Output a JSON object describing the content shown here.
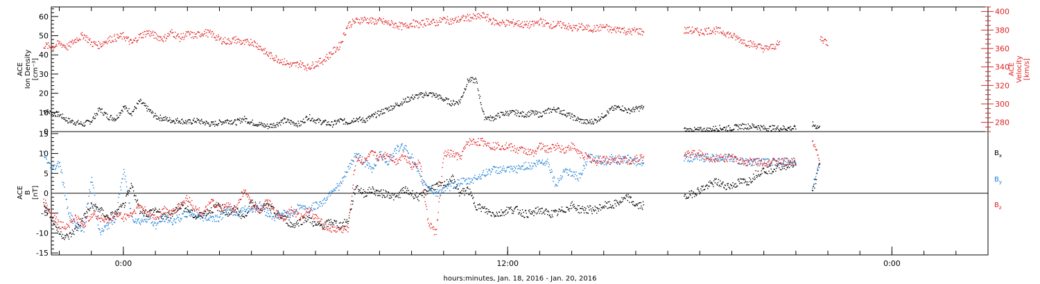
{
  "chart_data": [
    {
      "type": "scatter",
      "panel": "top",
      "ylabel": [
        "ACE",
        "Ion Density",
        "[cm⁻³]"
      ],
      "ylabel_right": [
        "ACE",
        "Velocity",
        "[km/s]"
      ],
      "ylim": [
        0,
        65
      ],
      "yticks": [
        0,
        10,
        20,
        30,
        40,
        50,
        60
      ],
      "ylim_right": [
        270,
        405
      ],
      "yticks_right": [
        280,
        300,
        320,
        340,
        360,
        380,
        400
      ],
      "colors": {
        "density": "#000000",
        "velocity": "#e02020"
      },
      "series": [
        {
          "name": "",
          "axis": "left",
          "color": "#000000",
          "x": [
            -2,
            -1,
            0,
            1,
            2,
            3,
            4,
            5,
            6,
            7,
            8,
            9,
            10,
            11,
            12,
            13,
            14,
            15,
            16,
            17,
            18,
            19,
            20,
            21,
            22,
            23,
            24,
            25,
            26,
            27,
            28,
            29,
            30,
            31,
            32,
            33,
            34,
            35,
            36,
            37,
            38,
            39,
            40,
            41,
            42,
            43,
            44,
            45,
            46,
            47,
            48,
            49,
            50,
            51,
            52,
            53,
            54,
            55,
            56,
            57,
            58,
            59,
            60,
            61,
            62,
            63,
            64,
            65,
            66,
            67,
            68,
            69,
            70,
            71,
            72,
            73,
            74,
            75,
            76,
            77,
            78,
            79,
            80,
            81,
            82,
            83,
            84,
            85,
            86,
            87,
            88,
            89,
            90,
            91,
            92,
            93,
            94,
            95,
            96,
            97,
            98,
            99,
            100
          ],
          "y": [
            11,
            10,
            9,
            6,
            5,
            4,
            6,
            12,
            8,
            7,
            13,
            10,
            16,
            12,
            8,
            7,
            6,
            6,
            5,
            6,
            5,
            4,
            5,
            6,
            5,
            7,
            5,
            4,
            3,
            4,
            6,
            5,
            4,
            8,
            6,
            5,
            4,
            6,
            5,
            7,
            6,
            8,
            10,
            12,
            14,
            16,
            18,
            19,
            20,
            19,
            17,
            15,
            16,
            27,
            27,
            8,
            7,
            9,
            10,
            10,
            9,
            10,
            9,
            11,
            12,
            10,
            8,
            6,
            5,
            6,
            9,
            12,
            13,
            11,
            12,
            13,
            null,
            null,
            null,
            null,
            1,
            1,
            1,
            1,
            2,
            2,
            2,
            3,
            3,
            3,
            2,
            2,
            2,
            2,
            2,
            null,
            4,
            2,
            null,
            null,
            null,
            null,
            null
          ]
        },
        {
          "name": "",
          "axis": "right",
          "color": "#e02020",
          "x": [
            -2,
            -1,
            0,
            1,
            2,
            3,
            4,
            5,
            6,
            7,
            8,
            9,
            10,
            11,
            12,
            13,
            14,
            15,
            16,
            17,
            18,
            19,
            20,
            21,
            22,
            23,
            24,
            25,
            26,
            27,
            28,
            29,
            30,
            31,
            32,
            33,
            34,
            35,
            36,
            37,
            38,
            39,
            40,
            41,
            42,
            43,
            44,
            45,
            46,
            47,
            48,
            49,
            50,
            51,
            52,
            53,
            54,
            55,
            56,
            57,
            58,
            59,
            60,
            61,
            62,
            63,
            64,
            65,
            66,
            67,
            68,
            69,
            70,
            71,
            72,
            73,
            74,
            75,
            76,
            77,
            78,
            79,
            80,
            81,
            82,
            83,
            84,
            85,
            86,
            87,
            88,
            89,
            90,
            91,
            92,
            93,
            94,
            95,
            96,
            97,
            98,
            99,
            100
          ],
          "y": [
            364,
            362,
            366,
            362,
            370,
            375,
            366,
            364,
            370,
            372,
            374,
            366,
            374,
            378,
            374,
            371,
            378,
            372,
            376,
            374,
            378,
            376,
            370,
            368,
            370,
            366,
            368,
            362,
            354,
            350,
            346,
            342,
            344,
            340,
            344,
            348,
            356,
            364,
            386,
            390,
            392,
            390,
            390,
            388,
            386,
            384,
            388,
            386,
            390,
            388,
            392,
            390,
            392,
            394,
            394,
            396,
            390,
            388,
            388,
            388,
            386,
            386,
            390,
            386,
            386,
            386,
            382,
            384,
            382,
            382,
            384,
            380,
            382,
            378,
            380,
            378,
            null,
            null,
            null,
            null,
            380,
            380,
            378,
            380,
            380,
            378,
            374,
            370,
            366,
            364,
            360,
            362,
            366,
            null,
            null,
            null,
            null,
            372,
            366,
            null,
            null,
            null,
            null
          ]
        }
      ]
    },
    {
      "type": "scatter",
      "panel": "bottom",
      "ylabel": [
        "ACE",
        "B",
        "[nT]"
      ],
      "ylim": [
        -15.5,
        15.5
      ],
      "yticks": [
        -15,
        -10,
        -5,
        0,
        5,
        10,
        15
      ],
      "xticks": [
        {
          "x": 8,
          "label": "0:00"
        },
        {
          "x": 56,
          "label": "12:00"
        },
        {
          "x": 104,
          "label": "0:00"
        }
      ],
      "xlim": [
        -1,
        116
      ],
      "xlabel": "hours:minutes, Jan. 18, 2016 - Jan. 20, 2016",
      "legend": [
        {
          "label": "B",
          "sub": "x",
          "color": "#000000"
        },
        {
          "label": "B",
          "sub": "y",
          "color": "#1a7fd6"
        },
        {
          "label": "B",
          "sub": "z",
          "color": "#e02020"
        }
      ],
      "series": [
        {
          "name": "Bx",
          "color": "#000000",
          "x": [
            -2,
            -1,
            0,
            1,
            2,
            3,
            4,
            5,
            6,
            7,
            8,
            9,
            10,
            11,
            12,
            13,
            14,
            15,
            16,
            17,
            18,
            19,
            20,
            21,
            22,
            23,
            24,
            25,
            26,
            27,
            28,
            29,
            30,
            31,
            32,
            33,
            34,
            35,
            36,
            37,
            38,
            39,
            40,
            41,
            42,
            43,
            44,
            45,
            46,
            47,
            48,
            49,
            50,
            51,
            52,
            53,
            54,
            55,
            56,
            57,
            58,
            59,
            60,
            61,
            62,
            63,
            64,
            65,
            66,
            67,
            68,
            69,
            70,
            71,
            72,
            73,
            74,
            75,
            76,
            77,
            78,
            79,
            80,
            81,
            82,
            83,
            84,
            85,
            86,
            87,
            88,
            89,
            90,
            91,
            92,
            93,
            94,
            95,
            96,
            97,
            98,
            99,
            100
          ],
          "y": [
            -2,
            -6,
            -10,
            -11,
            -9,
            -6,
            -3,
            -4,
            -6,
            -5,
            -3,
            2,
            -4,
            -5,
            -4,
            -6,
            -5,
            -3,
            -4,
            -6,
            -5,
            -4,
            -3,
            -5,
            -4,
            -6,
            -2,
            -4,
            -3,
            -5,
            -6,
            -8,
            -7,
            -6,
            -8,
            -8,
            -7,
            -8,
            -7,
            2,
            0,
            1,
            0,
            0,
            -1,
            1,
            0,
            -1,
            1,
            2,
            2,
            4,
            0,
            1,
            -3,
            -4,
            -5,
            -5,
            -4,
            -4,
            -5,
            -5,
            -4,
            -5,
            -5,
            -4,
            -3,
            -4,
            -4,
            -4,
            -3,
            -3,
            -2,
            -1,
            -3,
            -3,
            null,
            null,
            null,
            null,
            -1,
            0,
            1,
            2,
            3,
            2,
            2,
            3,
            3,
            5,
            6,
            6,
            7,
            7,
            8,
            null,
            0,
            8,
            null,
            null,
            null,
            null,
            null
          ]
        },
        {
          "name": "By",
          "color": "#1a7fd6",
          "x": [
            -2,
            -1,
            0,
            1,
            2,
            3,
            4,
            5,
            6,
            7,
            8,
            9,
            10,
            11,
            12,
            13,
            14,
            15,
            16,
            17,
            18,
            19,
            20,
            21,
            22,
            23,
            24,
            25,
            26,
            27,
            28,
            29,
            30,
            31,
            32,
            33,
            34,
            35,
            36,
            37,
            38,
            39,
            40,
            41,
            42,
            43,
            44,
            45,
            46,
            47,
            48,
            49,
            50,
            51,
            52,
            53,
            54,
            55,
            56,
            57,
            58,
            59,
            60,
            61,
            62,
            63,
            64,
            65,
            66,
            67,
            68,
            69,
            70,
            71,
            72,
            73,
            74,
            75,
            76,
            77,
            78,
            79,
            80,
            81,
            82,
            83,
            84,
            85,
            86,
            87,
            88,
            89,
            90,
            91,
            92,
            93,
            94,
            95,
            96,
            97,
            98,
            99,
            100
          ],
          "y": [
            10,
            6,
            8,
            -4,
            -8,
            -9,
            4,
            -10,
            -8,
            -6,
            6,
            -6,
            -7,
            -6,
            -8,
            -6,
            -7,
            -6,
            -5,
            -5,
            -6,
            -6,
            -6,
            -4,
            -5,
            -4,
            -4,
            -3,
            -5,
            -6,
            -5,
            -5,
            -3,
            -4,
            -3,
            -2,
            1,
            2,
            6,
            10,
            8,
            6,
            10,
            8,
            11,
            12,
            9,
            4,
            2,
            0,
            1,
            2,
            3,
            3,
            4,
            5,
            6,
            6,
            6,
            6,
            7,
            7,
            8,
            8,
            2,
            6,
            5,
            4,
            9,
            9,
            8,
            9,
            8,
            9,
            8,
            8,
            null,
            null,
            null,
            null,
            9,
            9,
            9,
            9,
            9,
            9,
            9,
            8,
            8,
            8,
            8,
            8,
            8,
            8,
            8,
            null,
            2,
            8,
            null,
            null,
            null,
            null,
            null
          ]
        },
        {
          "name": "Bz",
          "color": "#e02020",
          "x": [
            -2,
            -1,
            0,
            1,
            2,
            3,
            4,
            5,
            6,
            7,
            8,
            9,
            10,
            11,
            12,
            13,
            14,
            15,
            16,
            17,
            18,
            19,
            20,
            21,
            22,
            23,
            24,
            25,
            26,
            27,
            28,
            29,
            30,
            31,
            32,
            33,
            34,
            35,
            36,
            37,
            38,
            39,
            40,
            41,
            42,
            43,
            44,
            45,
            46,
            47,
            48,
            49,
            50,
            51,
            52,
            53,
            54,
            55,
            56,
            57,
            58,
            59,
            60,
            61,
            62,
            63,
            64,
            65,
            66,
            67,
            68,
            69,
            70,
            71,
            72,
            73,
            74,
            75,
            76,
            77,
            78,
            79,
            80,
            81,
            82,
            83,
            84,
            85,
            86,
            87,
            88,
            89,
            90,
            91,
            92,
            93,
            94,
            95,
            96,
            97,
            98,
            99,
            100
          ],
          "y": [
            -2,
            -5,
            -8,
            -8,
            -6,
            -8,
            -5,
            -6,
            -7,
            -5,
            -6,
            -5,
            -3,
            -5,
            -6,
            -4,
            -5,
            -3,
            -1,
            -4,
            -5,
            -2,
            -4,
            -3,
            -4,
            1,
            -3,
            -4,
            -2,
            -5,
            -6,
            -4,
            -6,
            -4,
            -6,
            -8,
            -9,
            -9,
            -9,
            9,
            8,
            10,
            9,
            10,
            8,
            10,
            7,
            8,
            -7,
            -10,
            10,
            10,
            9,
            13,
            13,
            13,
            12,
            12,
            12,
            11,
            11,
            10,
            12,
            11,
            12,
            11,
            12,
            10,
            9,
            8,
            9,
            8,
            9,
            8,
            9,
            9,
            null,
            null,
            null,
            null,
            10,
            10,
            10,
            9,
            9,
            9,
            9,
            8,
            8,
            8,
            8,
            8,
            8,
            8,
            8,
            null,
            14,
            8,
            null,
            null,
            null,
            null,
            null
          ]
        }
      ]
    }
  ]
}
